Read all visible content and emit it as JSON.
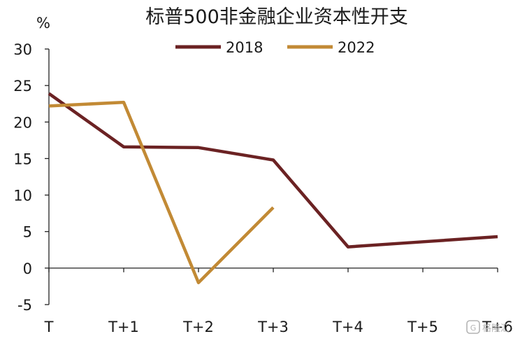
{
  "chart_data": {
    "type": "line",
    "title": "标普500非金融企业资本性开支",
    "ylabel": "%",
    "xlabel": "",
    "categories": [
      "T",
      "T+1",
      "T+2",
      "T+3",
      "T+4",
      "T+5",
      "T+6"
    ],
    "ylim": [
      -5,
      30
    ],
    "yticks": [
      -5,
      0,
      5,
      10,
      15,
      20,
      25,
      30
    ],
    "grid": false,
    "legend_position": "top-center",
    "series": [
      {
        "name": "2018",
        "color": "#6b2223",
        "values": [
          23.9,
          16.6,
          16.5,
          14.8,
          2.9,
          3.6,
          4.3
        ]
      },
      {
        "name": "2022",
        "color": "#c28a35",
        "values": [
          22.2,
          22.7,
          -2.0,
          8.3,
          null,
          null,
          null
        ]
      }
    ]
  },
  "watermark": {
    "text": "格隆汇",
    "icon": "brand-logo-icon"
  }
}
